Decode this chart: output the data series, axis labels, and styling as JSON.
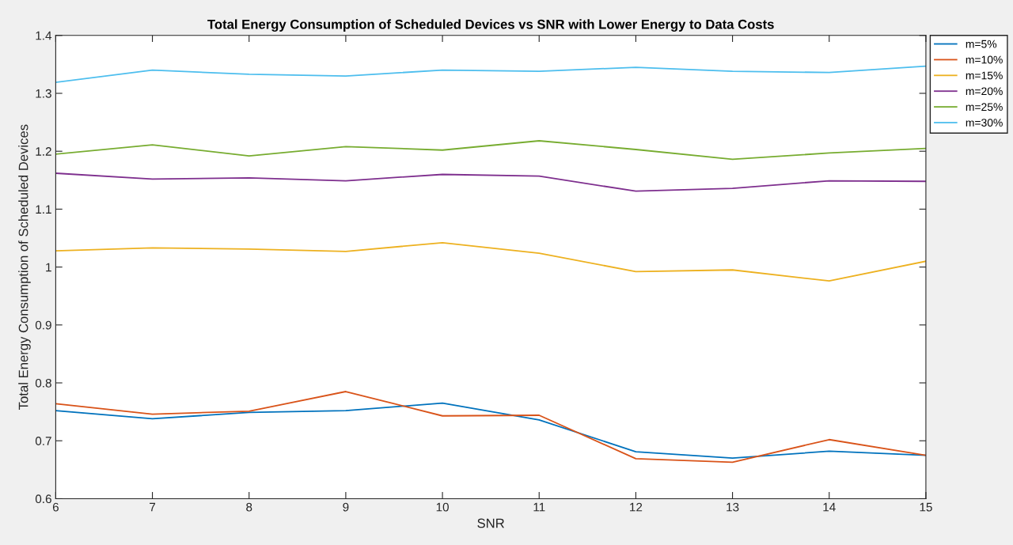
{
  "chart_data": {
    "type": "line",
    "title": "Total Energy Consumption of Scheduled Devices vs SNR with Lower Energy to Data Costs",
    "xlabel": "SNR",
    "ylabel": "Total Energy Consumption of Scheduled Devices",
    "x": [
      6,
      7,
      8,
      9,
      10,
      11,
      12,
      13,
      14,
      15
    ],
    "series": [
      {
        "name": "m=5%",
        "color": "#0072bd",
        "values": [
          0.752,
          0.738,
          0.749,
          0.752,
          0.765,
          0.736,
          0.681,
          0.67,
          0.682,
          0.675
        ]
      },
      {
        "name": "m=10%",
        "color": "#d95319",
        "values": [
          0.764,
          0.746,
          0.751,
          0.785,
          0.743,
          0.744,
          0.669,
          0.663,
          0.702,
          0.675
        ]
      },
      {
        "name": "m=15%",
        "color": "#edb120",
        "values": [
          1.028,
          1.033,
          1.031,
          1.027,
          1.042,
          1.024,
          0.992,
          0.995,
          0.976,
          1.01
        ]
      },
      {
        "name": "m=20%",
        "color": "#7e2f8e",
        "values": [
          1.162,
          1.152,
          1.154,
          1.149,
          1.16,
          1.157,
          1.131,
          1.136,
          1.149,
          1.148
        ]
      },
      {
        "name": "m=25%",
        "color": "#77ac30",
        "values": [
          1.195,
          1.211,
          1.192,
          1.208,
          1.202,
          1.218,
          1.203,
          1.186,
          1.197,
          1.205
        ]
      },
      {
        "name": "m=30%",
        "color": "#4dbeee",
        "values": [
          1.319,
          1.34,
          1.333,
          1.33,
          1.34,
          1.338,
          1.345,
          1.338,
          1.336,
          1.347
        ]
      }
    ],
    "xlim": [
      6,
      15
    ],
    "xticks": [
      6,
      7,
      8,
      9,
      10,
      11,
      12,
      13,
      14,
      15
    ],
    "ylim": [
      0.6,
      1.4
    ],
    "yticks": [
      0.6,
      0.7,
      0.8,
      0.9,
      1,
      1.1,
      1.2,
      1.3,
      1.4
    ],
    "grid": false,
    "legend": "top right",
    "marker": "none",
    "line_style": "solid"
  }
}
